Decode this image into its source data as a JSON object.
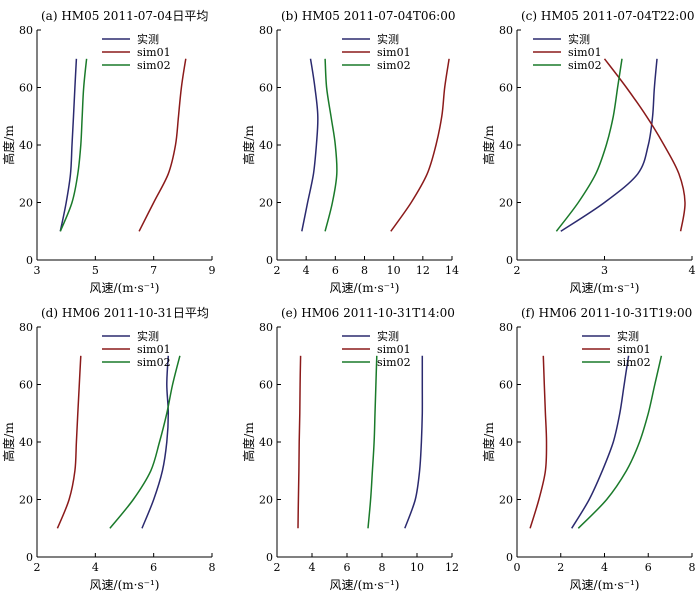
{
  "colors": {
    "实测": "#2b2a6f",
    "sim01": "#8b1a1a",
    "sim02": "#1a7a2a"
  },
  "chart_data": [
    {
      "type": "line",
      "title": "(a) HM05 2011-07-04日平均",
      "xlabel": "风速/(m·s⁻¹)",
      "ylabel": "高度/m",
      "xlim": [
        3,
        9
      ],
      "ylim": [
        0,
        80
      ],
      "xticks": [
        "3",
        "5",
        "7",
        "9"
      ],
      "yticks": [
        "0",
        "20",
        "40",
        "60",
        "80"
      ],
      "legend": {
        "position": "top-right",
        "entries": [
          "实测",
          "sim01",
          "sim02"
        ]
      },
      "series": [
        {
          "name": "实测",
          "points": [
            [
              3.8,
              10
            ],
            [
              4.0,
              20
            ],
            [
              4.15,
              30
            ],
            [
              4.2,
              40
            ],
            [
              4.25,
              50
            ],
            [
              4.3,
              60
            ],
            [
              4.35,
              70
            ]
          ]
        },
        {
          "name": "sim01",
          "points": [
            [
              6.5,
              10
            ],
            [
              7.0,
              20
            ],
            [
              7.5,
              30
            ],
            [
              7.75,
              40
            ],
            [
              7.85,
              50
            ],
            [
              7.95,
              60
            ],
            [
              8.1,
              70
            ]
          ]
        },
        {
          "name": "sim02",
          "points": [
            [
              3.8,
              10
            ],
            [
              4.2,
              20
            ],
            [
              4.4,
              30
            ],
            [
              4.5,
              40
            ],
            [
              4.55,
              50
            ],
            [
              4.6,
              60
            ],
            [
              4.7,
              70
            ]
          ]
        }
      ]
    },
    {
      "type": "line",
      "title": "(b) HM05 2011-07-04T06:00",
      "xlabel": "风速/(m·s⁻¹)",
      "ylabel": "高度/m",
      "xlim": [
        2,
        14
      ],
      "ylim": [
        0,
        80
      ],
      "xticks": [
        "2",
        "4",
        "6",
        "8",
        "10",
        "12",
        "14"
      ],
      "yticks": [
        "0",
        "20",
        "40",
        "60",
        "80"
      ],
      "legend": {
        "position": "top-right",
        "entries": [
          "实测",
          "sim01",
          "sim02"
        ]
      },
      "series": [
        {
          "name": "实测",
          "points": [
            [
              3.7,
              10
            ],
            [
              4.1,
              20
            ],
            [
              4.5,
              30
            ],
            [
              4.7,
              40
            ],
            [
              4.8,
              50
            ],
            [
              4.6,
              60
            ],
            [
              4.3,
              70
            ]
          ]
        },
        {
          "name": "sim01",
          "points": [
            [
              9.8,
              10
            ],
            [
              11.2,
              20
            ],
            [
              12.3,
              30
            ],
            [
              12.9,
              40
            ],
            [
              13.3,
              50
            ],
            [
              13.5,
              60
            ],
            [
              13.8,
              70
            ]
          ]
        },
        {
          "name": "sim02",
          "points": [
            [
              5.3,
              10
            ],
            [
              5.8,
              20
            ],
            [
              6.1,
              30
            ],
            [
              6.0,
              40
            ],
            [
              5.7,
              50
            ],
            [
              5.4,
              60
            ],
            [
              5.3,
              70
            ]
          ]
        }
      ]
    },
    {
      "type": "line",
      "title": "(c) HM05 2011-07-04T22:00",
      "xlabel": "风速/(m·s⁻¹)",
      "ylabel": "高度/m",
      "xlim": [
        2,
        4
      ],
      "ylim": [
        0,
        80
      ],
      "xticks": [
        "2",
        "3",
        "4"
      ],
      "yticks": [
        "0",
        "20",
        "40",
        "60",
        "80"
      ],
      "legend": {
        "position": "top-left",
        "entries": [
          "实测",
          "sim01",
          "sim02"
        ]
      },
      "series": [
        {
          "name": "实测",
          "points": [
            [
              2.5,
              10
            ],
            [
              3.0,
              20
            ],
            [
              3.38,
              30
            ],
            [
              3.5,
              40
            ],
            [
              3.55,
              50
            ],
            [
              3.57,
              60
            ],
            [
              3.6,
              70
            ]
          ]
        },
        {
          "name": "sim01",
          "points": [
            [
              3.87,
              10
            ],
            [
              3.92,
              20
            ],
            [
              3.85,
              30
            ],
            [
              3.68,
              40
            ],
            [
              3.48,
              50
            ],
            [
              3.25,
              60
            ],
            [
              3.0,
              70
            ]
          ]
        },
        {
          "name": "sim02",
          "points": [
            [
              2.45,
              10
            ],
            [
              2.7,
              20
            ],
            [
              2.9,
              30
            ],
            [
              3.02,
              40
            ],
            [
              3.1,
              50
            ],
            [
              3.15,
              60
            ],
            [
              3.2,
              70
            ]
          ]
        }
      ]
    },
    {
      "type": "line",
      "title": "(d) HM06 2011-10-31日平均",
      "xlabel": "风速/(m·s⁻¹)",
      "ylabel": "高度/m",
      "xlim": [
        2,
        8
      ],
      "ylim": [
        0,
        80
      ],
      "xticks": [
        "2",
        "4",
        "6",
        "8"
      ],
      "yticks": [
        "0",
        "20",
        "40",
        "60",
        "80"
      ],
      "legend": {
        "position": "top-right",
        "entries": [
          "实测",
          "sim01",
          "sim02"
        ]
      },
      "series": [
        {
          "name": "实测",
          "points": [
            [
              5.6,
              10
            ],
            [
              6.0,
              20
            ],
            [
              6.3,
              30
            ],
            [
              6.45,
              40
            ],
            [
              6.5,
              50
            ],
            [
              6.45,
              60
            ],
            [
              6.5,
              70
            ]
          ]
        },
        {
          "name": "sim01",
          "points": [
            [
              2.7,
              10
            ],
            [
              3.1,
              20
            ],
            [
              3.3,
              30
            ],
            [
              3.35,
              40
            ],
            [
              3.4,
              50
            ],
            [
              3.45,
              60
            ],
            [
              3.5,
              70
            ]
          ]
        },
        {
          "name": "sim02",
          "points": [
            [
              4.5,
              10
            ],
            [
              5.3,
              20
            ],
            [
              5.9,
              30
            ],
            [
              6.2,
              40
            ],
            [
              6.45,
              50
            ],
            [
              6.65,
              60
            ],
            [
              6.9,
              70
            ]
          ]
        }
      ]
    },
    {
      "type": "line",
      "title": "(e) HM06 2011-10-31T14:00",
      "xlabel": "风速/(m·s⁻¹)",
      "ylabel": "高度/m",
      "xlim": [
        2,
        12
      ],
      "ylim": [
        0,
        80
      ],
      "xticks": [
        "2",
        "4",
        "6",
        "8",
        "10",
        "12"
      ],
      "yticks": [
        "0",
        "20",
        "40",
        "60",
        "80"
      ],
      "legend": {
        "position": "top-right",
        "entries": [
          "实测",
          "sim01",
          "sim02"
        ]
      },
      "series": [
        {
          "name": "实测",
          "points": [
            [
              9.3,
              10
            ],
            [
              9.9,
              20
            ],
            [
              10.15,
              30
            ],
            [
              10.25,
              40
            ],
            [
              10.3,
              50
            ],
            [
              10.3,
              60
            ],
            [
              10.3,
              70
            ]
          ]
        },
        {
          "name": "sim01",
          "points": [
            [
              3.2,
              10
            ],
            [
              3.22,
              20
            ],
            [
              3.25,
              30
            ],
            [
              3.27,
              40
            ],
            [
              3.3,
              50
            ],
            [
              3.32,
              60
            ],
            [
              3.35,
              70
            ]
          ]
        },
        {
          "name": "sim02",
          "points": [
            [
              7.2,
              10
            ],
            [
              7.35,
              20
            ],
            [
              7.45,
              30
            ],
            [
              7.55,
              40
            ],
            [
              7.6,
              50
            ],
            [
              7.65,
              60
            ],
            [
              7.7,
              70
            ]
          ]
        }
      ]
    },
    {
      "type": "line",
      "title": "(f) HM06 2011-10-31T19:00",
      "xlabel": "风速/(m·s⁻¹)",
      "ylabel": "高度/m",
      "xlim": [
        0,
        8
      ],
      "ylim": [
        0,
        80
      ],
      "xticks": [
        "0",
        "2",
        "4",
        "6",
        "8"
      ],
      "yticks": [
        "0",
        "20",
        "40",
        "60",
        "80"
      ],
      "legend": {
        "position": "top-right",
        "entries": [
          "实测",
          "sim01",
          "sim02"
        ]
      },
      "series": [
        {
          "name": "实测",
          "points": [
            [
              2.5,
              10
            ],
            [
              3.3,
              20
            ],
            [
              3.9,
              30
            ],
            [
              4.4,
              40
            ],
            [
              4.7,
              50
            ],
            [
              4.9,
              60
            ],
            [
              5.1,
              70
            ]
          ]
        },
        {
          "name": "sim01",
          "points": [
            [
              0.6,
              10
            ],
            [
              1.0,
              20
            ],
            [
              1.3,
              30
            ],
            [
              1.35,
              40
            ],
            [
              1.3,
              50
            ],
            [
              1.25,
              60
            ],
            [
              1.2,
              70
            ]
          ]
        },
        {
          "name": "sim02",
          "points": [
            [
              2.8,
              10
            ],
            [
              4.1,
              20
            ],
            [
              5.0,
              30
            ],
            [
              5.6,
              40
            ],
            [
              6.0,
              50
            ],
            [
              6.3,
              60
            ],
            [
              6.6,
              70
            ]
          ]
        }
      ]
    }
  ]
}
